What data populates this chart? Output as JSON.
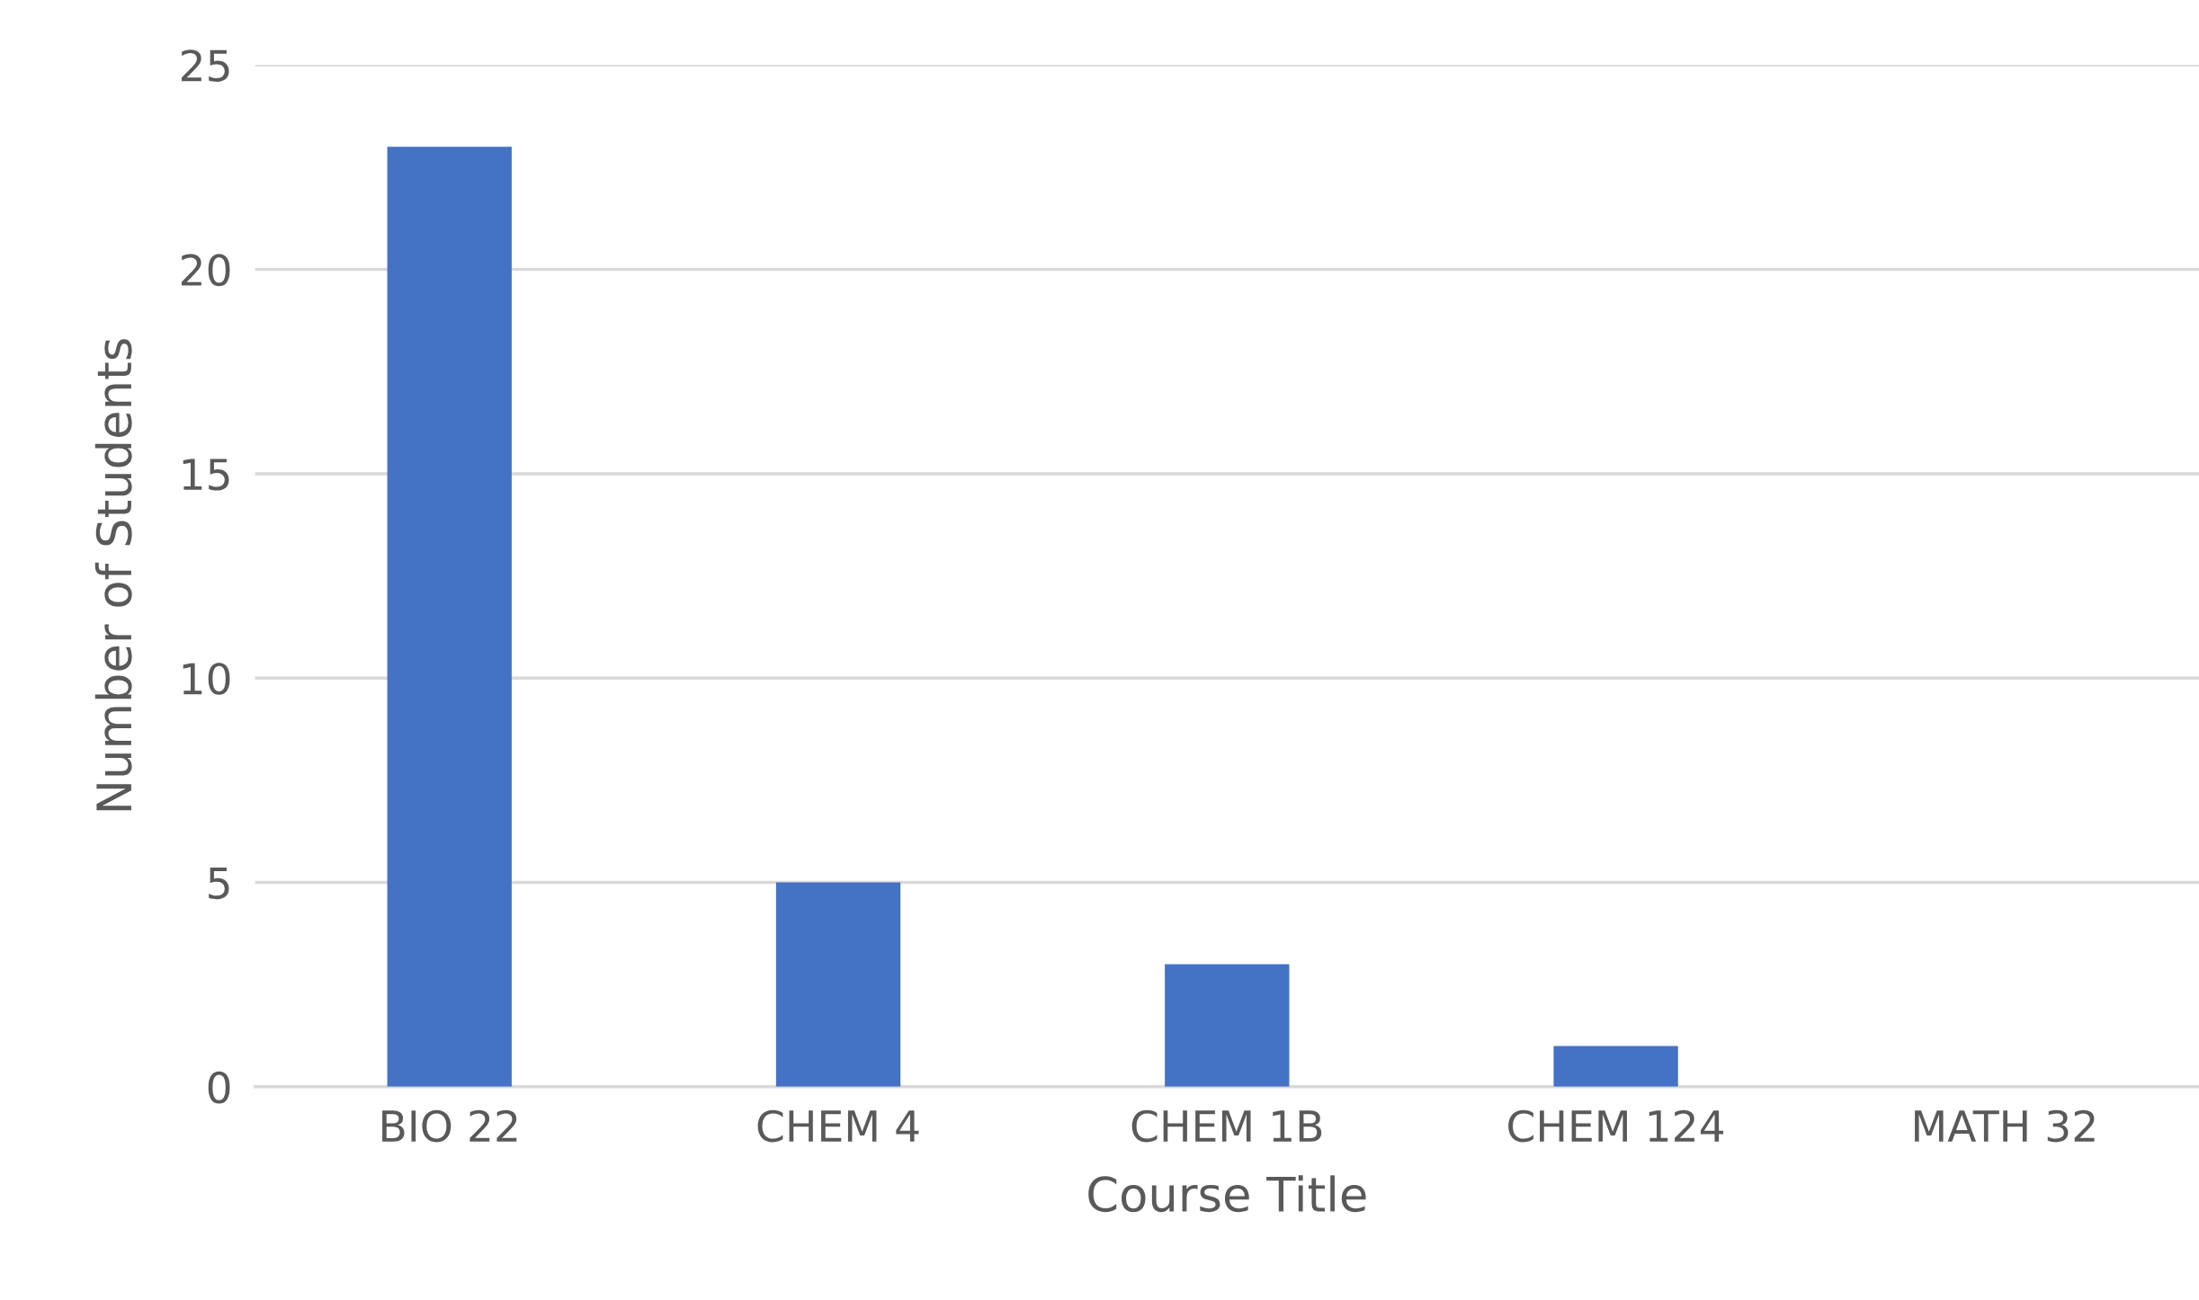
{
  "chart_data": {
    "type": "bar",
    "xlabel": "Course Title",
    "ylabel": "Number of Students",
    "categories": [
      "BIO 22",
      "CHEM 4",
      "CHEM 1B",
      "CHEM 124",
      "MATH 32"
    ],
    "values": [
      23,
      5,
      3,
      1,
      0
    ],
    "color": "#4472c4",
    "ylim": [
      0,
      25
    ],
    "yticks": [
      0,
      5,
      10,
      15,
      20,
      25
    ],
    "grid": "y",
    "legend": false
  }
}
